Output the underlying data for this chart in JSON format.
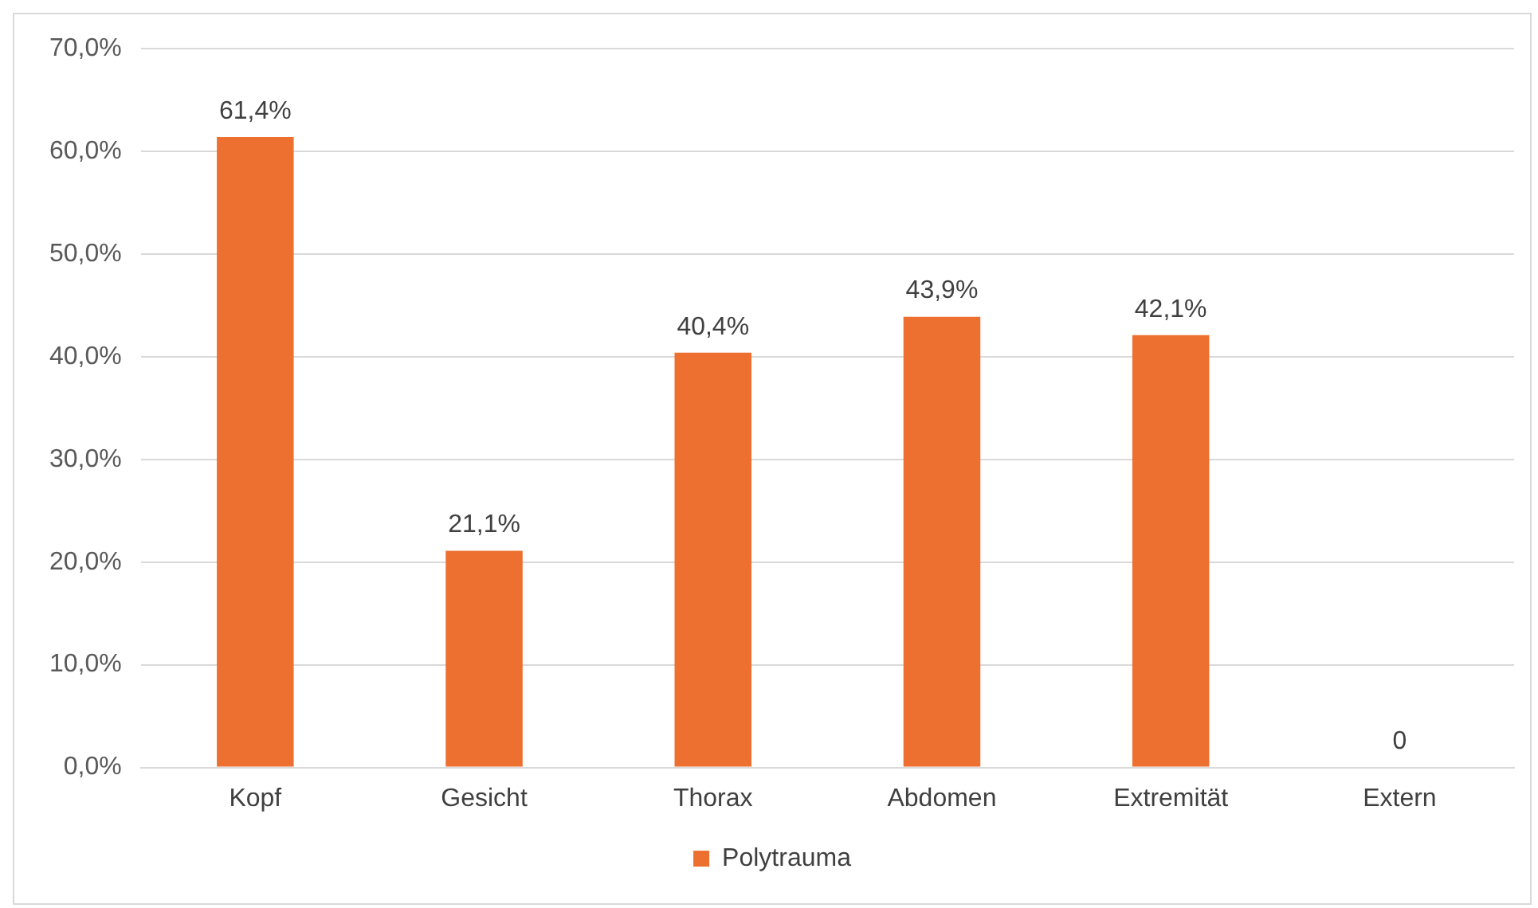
{
  "chart_data": {
    "type": "bar",
    "categories": [
      "Kopf",
      "Gesicht",
      "Thorax",
      "Abdomen",
      "Extremität",
      "Extern"
    ],
    "series": [
      {
        "name": "Polytrauma",
        "color": "#ed7031",
        "values": [
          61.4,
          21.1,
          40.4,
          43.9,
          42.1,
          0
        ],
        "value_labels": [
          "61,4%",
          "21,1%",
          "40,4%",
          "43,9%",
          "42,1%",
          "0"
        ]
      }
    ],
    "ylim": [
      0,
      70
    ],
    "yticks": [
      {
        "value": 0,
        "label": "0,0%"
      },
      {
        "value": 10,
        "label": "10,0%"
      },
      {
        "value": 20,
        "label": "20,0%"
      },
      {
        "value": 30,
        "label": "30,0%"
      },
      {
        "value": 40,
        "label": "40,0%"
      },
      {
        "value": 50,
        "label": "50,0%"
      },
      {
        "value": 60,
        "label": "60,0%"
      },
      {
        "value": 70,
        "label": "70,0%"
      }
    ],
    "grid": "y",
    "legend": "bottom"
  }
}
